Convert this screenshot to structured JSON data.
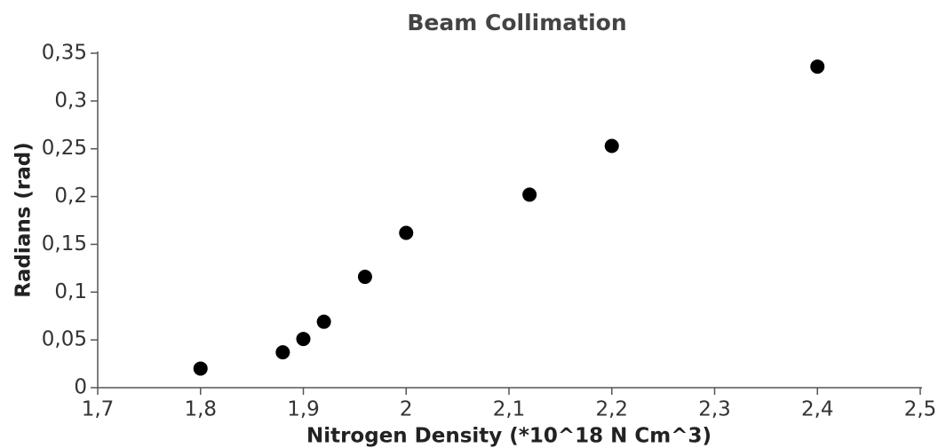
{
  "chart_data": {
    "type": "scatter",
    "title": "Beam Collimation",
    "x_label": "Nitrogen Density (*10^18 N Cm^3)",
    "y_label": "Radians (rad)",
    "color": "#000000",
    "x": [
      1.8,
      1.88,
      1.9,
      1.92,
      1.96,
      2.0,
      2.12,
      2.2,
      2.4
    ],
    "values": [
      0.02,
      0.037,
      0.051,
      0.069,
      0.116,
      0.162,
      0.202,
      0.253,
      0.336
    ],
    "xlim": [
      1.7,
      2.5
    ],
    "xticks": [
      {
        "value": 1.7,
        "label": "1,7"
      },
      {
        "value": 1.8,
        "label": "1,8"
      },
      {
        "value": 1.9,
        "label": "1,9"
      },
      2,
      {
        "value": 2.1,
        "label": "2,1"
      },
      {
        "value": 2.2,
        "label": "2,2"
      },
      {
        "value": 2.3,
        "label": "2,3"
      },
      {
        "value": 2.4,
        "label": "2,4"
      },
      {
        "value": 2.5,
        "label": "2,5"
      }
    ],
    "ylim": [
      0,
      0.35
    ],
    "yticks": [
      0,
      {
        "value": 0.05,
        "label": "0,05"
      },
      {
        "value": 0.1,
        "label": "0,1"
      },
      {
        "value": 0.15,
        "label": "0,15"
      },
      {
        "value": 0.2,
        "label": "0,2"
      },
      {
        "value": 0.25,
        "label": "0,25"
      },
      {
        "value": 0.3,
        "label": "0,3"
      },
      {
        "value": 0.35,
        "label": "0,35"
      }
    ],
    "grid": false
  }
}
